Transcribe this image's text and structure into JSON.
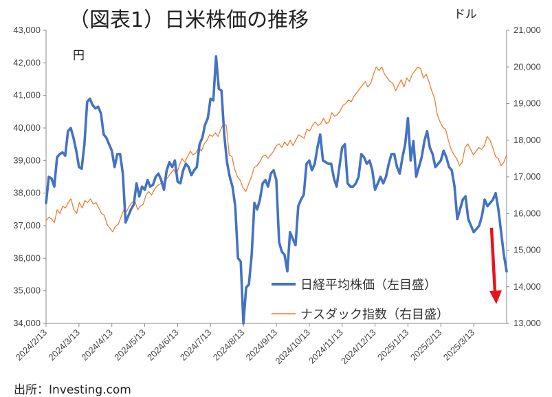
{
  "title": "（図表1）日米株価の推移",
  "unit_left": "円",
  "unit_right": "ドル",
  "source": "出所：Investing.com",
  "colors": {
    "nikkei": "#4472C4",
    "nasdaq": "#ED7D31",
    "arrow": "#E8141B",
    "axis": "#888888"
  },
  "chart_data": {
    "type": "line",
    "title": "（図表1）日米株価の推移",
    "x_labels": [
      "2024/2/13",
      "2024/3/13",
      "2024/4/13",
      "2024/5/13",
      "2024/6/13",
      "2024/7/13",
      "2024/8/13",
      "2024/9/13",
      "2024/10/13",
      "2024/11/13",
      "2024/12/13",
      "2025/1/13",
      "2025/2/13",
      "2025/3/13"
    ],
    "left_axis": {
      "min": 34000,
      "max": 43000,
      "step": 1000,
      "tick_labels": [
        "34,000",
        "35,000",
        "36,000",
        "37,000",
        "38,000",
        "39,000",
        "40,000",
        "41,000",
        "42,000",
        "43,000"
      ]
    },
    "right_axis": {
      "min": 13000,
      "max": 21000,
      "step": 1000,
      "tick_labels": [
        "13,000",
        "14,000",
        "15,000",
        "16,000",
        "17,000",
        "18,000",
        "19,000",
        "20,000",
        "21,000"
      ]
    },
    "series": [
      {
        "name": "日経平均株価（左目盛）",
        "axis": "left",
        "values": [
          37700,
          38500,
          38450,
          38200,
          39100,
          39200,
          39250,
          39150,
          39900,
          40000,
          39700,
          39300,
          38800,
          38750,
          39500,
          40800,
          40900,
          40700,
          40600,
          40650,
          40450,
          39800,
          39700,
          39500,
          39300,
          38800,
          39200,
          39200,
          38600,
          37100,
          37300,
          37500,
          37650,
          38300,
          37900,
          38200,
          38100,
          38400,
          38200,
          38250,
          38500,
          38600,
          38400,
          38100,
          38700,
          38950,
          38800,
          39000,
          38350,
          38300,
          38700,
          38900,
          38800,
          38550,
          38700,
          38800,
          39500,
          39700,
          40100,
          40300,
          40900,
          40850,
          42200,
          41200,
          41150,
          39800,
          38950,
          38500,
          38200,
          37600,
          36000,
          35900,
          34000,
          35100,
          35200,
          36100,
          37700,
          37500,
          37800,
          38300,
          38400,
          38200,
          38600,
          38700,
          38400,
          36500,
          36200,
          36100,
          35600,
          36800,
          36600,
          36400,
          37600,
          37800,
          37950,
          38900,
          39000,
          38700,
          38900,
          39400,
          39800,
          39000,
          38950,
          38900,
          38900,
          38450,
          38200,
          38800,
          39400,
          39500,
          38300,
          38200,
          38200,
          38300,
          38500,
          39200,
          39100,
          38900,
          39000,
          38700,
          38100,
          38300,
          38500,
          38300,
          38500,
          38900,
          39200,
          39200,
          38800,
          38600,
          39100,
          39500,
          40300,
          39000,
          39600,
          38500,
          38800,
          39100,
          39600,
          39900,
          39400,
          39200,
          38800,
          38900,
          39000,
          39300,
          39100,
          38800,
          38700,
          38200,
          37200,
          37500,
          37800,
          37900,
          37200,
          37000,
          36800,
          36900,
          37000,
          37300,
          37800,
          37600,
          37700,
          37800,
          38000,
          37500,
          36800,
          36100,
          35600
        ]
      },
      {
        "name": "ナスダック指数（右目盛）",
        "axis": "right",
        "values": [
          15800,
          15900,
          15850,
          15750,
          16100,
          16000,
          16200,
          16150,
          16300,
          16400,
          16100,
          16000,
          16300,
          16150,
          16350,
          16300,
          16400,
          16250,
          16300,
          16150,
          16000,
          15950,
          15700,
          15600,
          15500,
          15650,
          15700,
          15900,
          16100,
          16050,
          16200,
          16300,
          16350,
          16100,
          16200,
          16250,
          16500,
          16600,
          16500,
          16650,
          16750,
          16800,
          16850,
          16900,
          17000,
          17100,
          17200,
          17050,
          17300,
          17500,
          17400,
          17550,
          17700,
          17600,
          17650,
          17800,
          17700,
          17900,
          18000,
          18150,
          18100,
          18200,
          18100,
          18300,
          18450,
          18400,
          17600,
          17550,
          17200,
          17000,
          16900,
          16700,
          16600,
          16800,
          17000,
          17250,
          17300,
          17400,
          17550,
          17600,
          17500,
          17600,
          17700,
          17850,
          17900,
          17800,
          17950,
          17850,
          18000,
          17850,
          18000,
          18150,
          18100,
          18050,
          18300,
          18250,
          18400,
          18500,
          18400,
          18450,
          18600,
          18450,
          18500,
          18750,
          18650,
          18700,
          18800,
          18950,
          19000,
          19100,
          19050,
          19200,
          19300,
          19400,
          19500,
          19600,
          19450,
          19550,
          19800,
          20000,
          19900,
          20000,
          19800,
          19700,
          19600,
          19550,
          19350,
          19500,
          19650,
          19450,
          19700,
          19600,
          19800,
          19900,
          20000,
          19950,
          19700,
          19800,
          19600,
          19350,
          19150,
          18700,
          18500,
          18350,
          18300,
          18000,
          17750,
          17600,
          17500,
          17300,
          17400,
          17800,
          17900,
          17750,
          17600,
          17700,
          17800,
          17750,
          17850,
          18100,
          18000,
          17800,
          17550,
          17500,
          17300,
          17400,
          17600
        ]
      }
    ],
    "annotations": [
      {
        "type": "arrow",
        "color": "#E8141B",
        "note": "downward arrow near latest data"
      }
    ]
  }
}
